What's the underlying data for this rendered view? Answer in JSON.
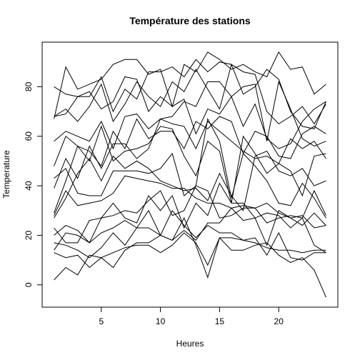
{
  "chart_data": {
    "type": "line",
    "title": "Température des stations",
    "xlabel": "Heures",
    "ylabel": "Temperature",
    "xlim": [
      0,
      25
    ],
    "ylim": [
      -9,
      98
    ],
    "xticks": [
      5,
      10,
      15,
      20
    ],
    "yticks": [
      0,
      20,
      40,
      60,
      80
    ],
    "grid": false,
    "legend": "none",
    "x": [
      1,
      2,
      3,
      4,
      5,
      6,
      7,
      8,
      9,
      10,
      11,
      12,
      13,
      14,
      15,
      16,
      17,
      18,
      19,
      20,
      21,
      22,
      23,
      24
    ],
    "series": [
      {
        "values": [
          67,
          88,
          79,
          81,
          83,
          89,
          91,
          91,
          85,
          87,
          72,
          89,
          86,
          94,
          91,
          87,
          89,
          86,
          84,
          94,
          87,
          88,
          77,
          81
        ]
      },
      {
        "values": [
          80,
          77,
          76,
          76,
          84,
          70,
          79,
          75,
          86,
          86,
          88,
          84,
          91,
          86,
          90,
          89,
          86,
          85,
          70,
          65,
          68,
          72,
          65,
          73
        ]
      },
      {
        "values": [
          68,
          71,
          66,
          72,
          81,
          66,
          73,
          82,
          76,
          72,
          82,
          78,
          87,
          79,
          71,
          89,
          77,
          80,
          87,
          83,
          70,
          64,
          63,
          74
        ]
      },
      {
        "values": [
          68,
          69,
          76,
          78,
          71,
          74,
          84,
          83,
          70,
          76,
          72,
          75,
          61,
          71,
          69,
          76,
          64,
          73,
          59,
          55,
          57,
          66,
          71,
          74
        ]
      },
      {
        "values": [
          58,
          62,
          60,
          58,
          66,
          55,
          68,
          69,
          63,
          67,
          68,
          74,
          72,
          82,
          82,
          76,
          80,
          81,
          58,
          82,
          71,
          59,
          56,
          58
        ]
      },
      {
        "values": [
          48,
          60,
          56,
          54,
          48,
          62,
          55,
          67,
          59,
          62,
          62,
          55,
          66,
          63,
          68,
          66,
          53,
          62,
          60,
          52,
          51,
          61,
          64,
          61
        ]
      },
      {
        "values": [
          39,
          51,
          43,
          56,
          47,
          57,
          57,
          51,
          55,
          67,
          65,
          64,
          55,
          66,
          62,
          58,
          54,
          51,
          52,
          49,
          59,
          55,
          58,
          51
        ]
      },
      {
        "values": [
          29,
          42,
          56,
          50,
          64,
          50,
          54,
          55,
          57,
          64,
          63,
          52,
          44,
          58,
          54,
          33,
          60,
          53,
          45,
          49,
          46,
          36,
          52,
          53
        ]
      },
      {
        "values": [
          27,
          35,
          45,
          51,
          42,
          52,
          47,
          50,
          47,
          42,
          40,
          38,
          39,
          34,
          45,
          36,
          30,
          52,
          54,
          46,
          44,
          47,
          40,
          42
        ]
      },
      {
        "values": [
          43,
          47,
          37,
          36,
          36,
          46,
          46,
          46,
          45,
          47,
          53,
          36,
          40,
          67,
          58,
          35,
          53,
          48,
          42,
          33,
          32,
          41,
          35,
          27
        ]
      },
      {
        "values": [
          28,
          38,
          32,
          33,
          34,
          37,
          44,
          43,
          42,
          41,
          39,
          39,
          35,
          33,
          33,
          31,
          32,
          31,
          33,
          29,
          27,
          24,
          29,
          24
        ]
      },
      {
        "values": [
          20,
          24,
          22,
          17,
          27,
          28,
          30,
          29,
          34,
          38,
          28,
          30,
          40,
          38,
          27,
          28,
          31,
          31,
          25,
          27,
          28,
          27,
          16,
          13
        ]
      },
      {
        "values": [
          23,
          17,
          17,
          26,
          27,
          33,
          27,
          25,
          36,
          30,
          36,
          23,
          33,
          28,
          41,
          33,
          33,
          27,
          29,
          28,
          23,
          27,
          38,
          28
        ]
      },
      {
        "values": [
          14,
          21,
          20,
          17,
          21,
          23,
          26,
          23,
          30,
          20,
          18,
          22,
          18,
          25,
          25,
          31,
          26,
          27,
          16,
          30,
          27,
          28,
          23,
          24
        ]
      },
      {
        "values": [
          17,
          16,
          14,
          11,
          15,
          21,
          16,
          23,
          23,
          20,
          30,
          24,
          19,
          24,
          21,
          21,
          18,
          17,
          15,
          14,
          14,
          13,
          14,
          14
        ]
      },
      {
        "values": [
          13,
          11,
          12,
          7,
          11,
          13,
          15,
          16,
          16,
          13,
          16,
          21,
          17,
          8,
          19,
          14,
          14,
          16,
          17,
          12,
          9,
          11,
          6,
          -5
        ]
      },
      {
        "values": [
          2,
          7,
          4,
          12,
          11,
          7,
          14,
          17,
          17,
          20,
          18,
          27,
          16,
          3,
          19,
          19,
          18,
          19,
          12,
          21,
          11,
          10,
          13,
          13
        ]
      }
    ]
  }
}
